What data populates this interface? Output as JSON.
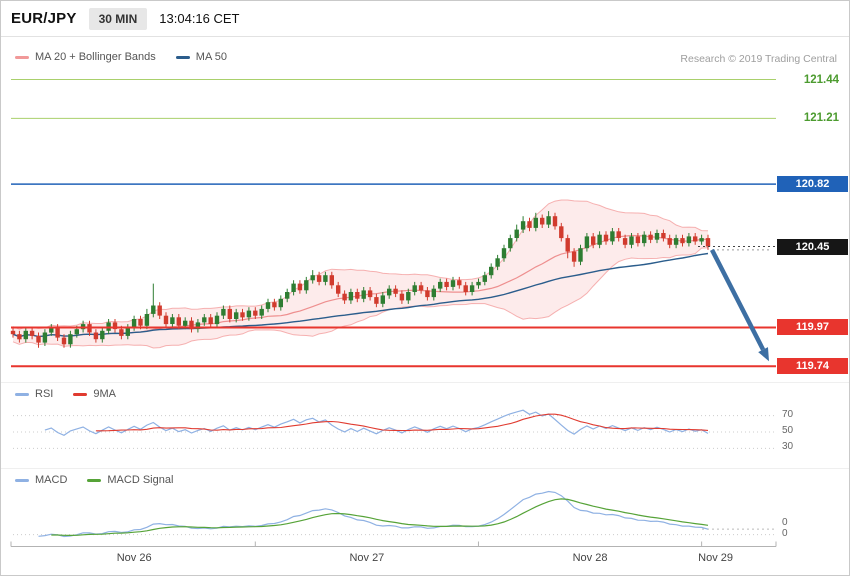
{
  "header": {
    "symbol": "EUR/JPY",
    "timeframe": "30 MIN",
    "time": "13:04:16 CET"
  },
  "credit": "Research © 2019 Trading Central",
  "legends": {
    "main": [
      {
        "label": "MA 20 + Bollinger Bands",
        "color": "#f19999"
      },
      {
        "label": "MA 50",
        "color": "#2b5d8c"
      }
    ],
    "rsi": [
      {
        "label": "RSI",
        "color": "#8fb1e3"
      },
      {
        "label": "9MA",
        "color": "#e03b30"
      }
    ],
    "macd": [
      {
        "label": "MACD",
        "color": "#8fb1e3"
      },
      {
        "label": "MACD Signal",
        "color": "#56a338"
      }
    ]
  },
  "chart_data": {
    "type": "candlestick",
    "symbol": "EUR/JPY",
    "interval": "30 MIN",
    "ylim": [
      119.7,
      121.55
    ],
    "x_labels": [
      "Nov 26",
      "Nov 27",
      "Nov 28",
      "Nov 29"
    ],
    "day_start_indices": [
      0,
      38,
      73,
      108
    ],
    "candle_format": "[open, high, low, close]",
    "candles": [
      [
        119.95,
        119.97,
        119.91,
        119.93
      ],
      [
        119.93,
        119.95,
        119.88,
        119.9
      ],
      [
        119.9,
        119.97,
        119.88,
        119.95
      ],
      [
        119.95,
        119.97,
        119.9,
        119.92
      ],
      [
        119.92,
        119.94,
        119.85,
        119.88
      ],
      [
        119.88,
        119.96,
        119.86,
        119.94
      ],
      [
        119.94,
        119.99,
        119.92,
        119.97
      ],
      [
        119.97,
        119.99,
        119.89,
        119.91
      ],
      [
        119.91,
        119.93,
        119.85,
        119.87
      ],
      [
        119.87,
        119.95,
        119.85,
        119.93
      ],
      [
        119.93,
        119.98,
        119.91,
        119.96
      ],
      [
        119.96,
        120.01,
        119.94,
        119.99
      ],
      [
        119.99,
        120.01,
        119.92,
        119.94
      ],
      [
        119.94,
        119.96,
        119.88,
        119.9
      ],
      [
        119.9,
        119.97,
        119.88,
        119.95
      ],
      [
        119.95,
        120.02,
        119.93,
        120.0
      ],
      [
        120.0,
        120.02,
        119.94,
        119.96
      ],
      [
        119.96,
        119.98,
        119.9,
        119.92
      ],
      [
        119.92,
        119.99,
        119.9,
        119.97
      ],
      [
        119.97,
        120.04,
        119.95,
        120.02
      ],
      [
        120.02,
        120.04,
        119.96,
        119.98
      ],
      [
        119.98,
        120.08,
        119.96,
        120.05
      ],
      [
        120.05,
        120.23,
        120.03,
        120.1
      ],
      [
        120.1,
        120.12,
        120.02,
        120.04
      ],
      [
        120.04,
        120.06,
        119.97,
        119.99
      ],
      [
        119.99,
        120.05,
        119.97,
        120.03
      ],
      [
        120.03,
        120.05,
        119.96,
        119.98
      ],
      [
        119.98,
        120.03,
        119.96,
        120.01
      ],
      [
        120.01,
        120.03,
        119.94,
        119.96
      ],
      [
        119.96,
        120.02,
        119.94,
        120.0
      ],
      [
        120.0,
        120.05,
        119.98,
        120.03
      ],
      [
        120.03,
        120.05,
        119.97,
        119.99
      ],
      [
        119.99,
        120.06,
        119.97,
        120.04
      ],
      [
        120.04,
        120.1,
        120.02,
        120.08
      ],
      [
        120.08,
        120.1,
        120.0,
        120.02
      ],
      [
        120.02,
        120.08,
        120.0,
        120.06
      ],
      [
        120.06,
        120.08,
        120.01,
        120.03
      ],
      [
        120.03,
        120.09,
        120.01,
        120.07
      ],
      [
        120.07,
        120.09,
        120.02,
        120.04
      ],
      [
        120.04,
        120.1,
        120.02,
        120.08
      ],
      [
        120.08,
        120.14,
        120.06,
        120.12
      ],
      [
        120.12,
        120.14,
        120.07,
        120.09
      ],
      [
        120.09,
        120.16,
        120.07,
        120.14
      ],
      [
        120.14,
        120.2,
        120.12,
        120.18
      ],
      [
        120.18,
        120.25,
        120.16,
        120.23
      ],
      [
        120.23,
        120.25,
        120.17,
        120.19
      ],
      [
        120.19,
        120.27,
        120.17,
        120.25
      ],
      [
        120.25,
        120.31,
        120.23,
        120.28
      ],
      [
        120.28,
        120.3,
        120.22,
        120.24
      ],
      [
        120.24,
        120.3,
        120.22,
        120.28
      ],
      [
        120.28,
        120.3,
        120.2,
        120.22
      ],
      [
        120.22,
        120.24,
        120.15,
        120.17
      ],
      [
        120.17,
        120.19,
        120.11,
        120.13
      ],
      [
        120.13,
        120.2,
        120.11,
        120.18
      ],
      [
        120.18,
        120.2,
        120.12,
        120.14
      ],
      [
        120.14,
        120.21,
        120.12,
        120.19
      ],
      [
        120.19,
        120.21,
        120.13,
        120.15
      ],
      [
        120.15,
        120.17,
        120.09,
        120.11
      ],
      [
        120.11,
        120.18,
        120.09,
        120.16
      ],
      [
        120.16,
        120.22,
        120.14,
        120.2
      ],
      [
        120.2,
        120.22,
        120.15,
        120.17
      ],
      [
        120.17,
        120.19,
        120.11,
        120.13
      ],
      [
        120.13,
        120.2,
        120.11,
        120.18
      ],
      [
        120.18,
        120.24,
        120.16,
        120.22
      ],
      [
        120.22,
        120.24,
        120.17,
        120.19
      ],
      [
        120.19,
        120.21,
        120.13,
        120.15
      ],
      [
        120.15,
        120.22,
        120.13,
        120.2
      ],
      [
        120.2,
        120.26,
        120.18,
        120.24
      ],
      [
        120.24,
        120.26,
        120.19,
        120.21
      ],
      [
        120.21,
        120.27,
        120.19,
        120.25
      ],
      [
        120.25,
        120.27,
        120.2,
        120.22
      ],
      [
        120.22,
        120.24,
        120.16,
        120.18
      ],
      [
        120.18,
        120.24,
        120.16,
        120.22
      ],
      [
        120.22,
        120.26,
        120.2,
        120.24
      ],
      [
        120.24,
        120.3,
        120.22,
        120.28
      ],
      [
        120.28,
        120.35,
        120.26,
        120.33
      ],
      [
        120.33,
        120.4,
        120.31,
        120.38
      ],
      [
        120.38,
        120.46,
        120.36,
        120.44
      ],
      [
        120.44,
        120.52,
        120.42,
        120.5
      ],
      [
        120.5,
        120.58,
        120.48,
        120.55
      ],
      [
        120.55,
        120.63,
        120.53,
        120.6
      ],
      [
        120.6,
        120.62,
        120.54,
        120.56
      ],
      [
        120.56,
        120.65,
        120.54,
        120.62
      ],
      [
        120.62,
        120.64,
        120.56,
        120.58
      ],
      [
        120.58,
        120.66,
        120.56,
        120.63
      ],
      [
        120.63,
        120.65,
        120.55,
        120.57
      ],
      [
        120.57,
        120.59,
        120.48,
        120.5
      ],
      [
        120.5,
        120.52,
        120.38,
        120.42
      ],
      [
        120.42,
        120.44,
        120.33,
        120.36
      ],
      [
        120.36,
        120.46,
        120.34,
        120.44
      ],
      [
        120.44,
        120.53,
        120.42,
        120.51
      ],
      [
        120.51,
        120.53,
        120.44,
        120.46
      ],
      [
        120.46,
        120.54,
        120.44,
        120.52
      ],
      [
        120.52,
        120.54,
        120.46,
        120.48
      ],
      [
        120.48,
        120.56,
        120.46,
        120.54
      ],
      [
        120.54,
        120.56,
        120.48,
        120.5
      ],
      [
        120.5,
        120.52,
        120.44,
        120.46
      ],
      [
        120.46,
        120.53,
        120.44,
        120.51
      ],
      [
        120.51,
        120.53,
        120.45,
        120.47
      ],
      [
        120.47,
        120.54,
        120.45,
        120.52
      ],
      [
        120.52,
        120.54,
        120.47,
        120.49
      ],
      [
        120.49,
        120.55,
        120.47,
        120.53
      ],
      [
        120.53,
        120.55,
        120.48,
        120.5
      ],
      [
        120.5,
        120.52,
        120.44,
        120.46
      ],
      [
        120.46,
        120.52,
        120.44,
        120.5
      ],
      [
        120.5,
        120.52,
        120.45,
        120.47
      ],
      [
        120.47,
        120.53,
        120.45,
        120.51
      ],
      [
        120.51,
        120.53,
        120.46,
        120.48
      ],
      [
        120.48,
        120.52,
        120.46,
        120.5
      ],
      [
        120.5,
        120.52,
        120.43,
        120.45
      ]
    ],
    "levels": [
      {
        "label": "121.44",
        "value": 121.44,
        "kind": "resistance",
        "line_color": "#a9d06c",
        "line_width": 1,
        "line_style": "solid",
        "label_style": "text",
        "label_color": "#4c9b2f"
      },
      {
        "label": "121.21",
        "value": 121.21,
        "kind": "resistance",
        "line_color": "#a9d06c",
        "line_width": 1,
        "line_style": "solid",
        "label_style": "text",
        "label_color": "#4c9b2f"
      },
      {
        "label": "120.82",
        "value": 120.82,
        "kind": "resistance",
        "line_color": "#2062b8",
        "line_width": 1.5,
        "line_style": "solid",
        "label_style": "box",
        "label_bg": "#2062b8"
      },
      {
        "label": "120.45",
        "value": 120.45,
        "kind": "last-price",
        "line_color": "#444444",
        "line_width": 1,
        "line_style": "dotted-leader",
        "label_style": "box",
        "label_bg": "#161616"
      },
      {
        "label": "119.97",
        "value": 119.97,
        "kind": "support",
        "line_color": "#e8352e",
        "line_width": 2,
        "line_style": "solid",
        "label_style": "box",
        "label_bg": "#e8352e"
      },
      {
        "label": "119.74",
        "value": 119.74,
        "kind": "support",
        "line_color": "#e8352e",
        "line_width": 2,
        "line_style": "solid",
        "label_style": "box",
        "label_bg": "#e8352e"
      }
    ],
    "forecast_arrow": {
      "direction": "down",
      "from_price": 120.43,
      "to_price": 119.77,
      "color": "#3d6fa3"
    },
    "rsi_axis": [
      {
        "label": "70",
        "value": 70
      },
      {
        "label": "50",
        "value": 50
      },
      {
        "label": "30",
        "value": 30
      }
    ],
    "macd_axis": [
      {
        "label": "0",
        "type": "current-value"
      },
      {
        "label": "0",
        "type": "zero-line"
      }
    ]
  }
}
